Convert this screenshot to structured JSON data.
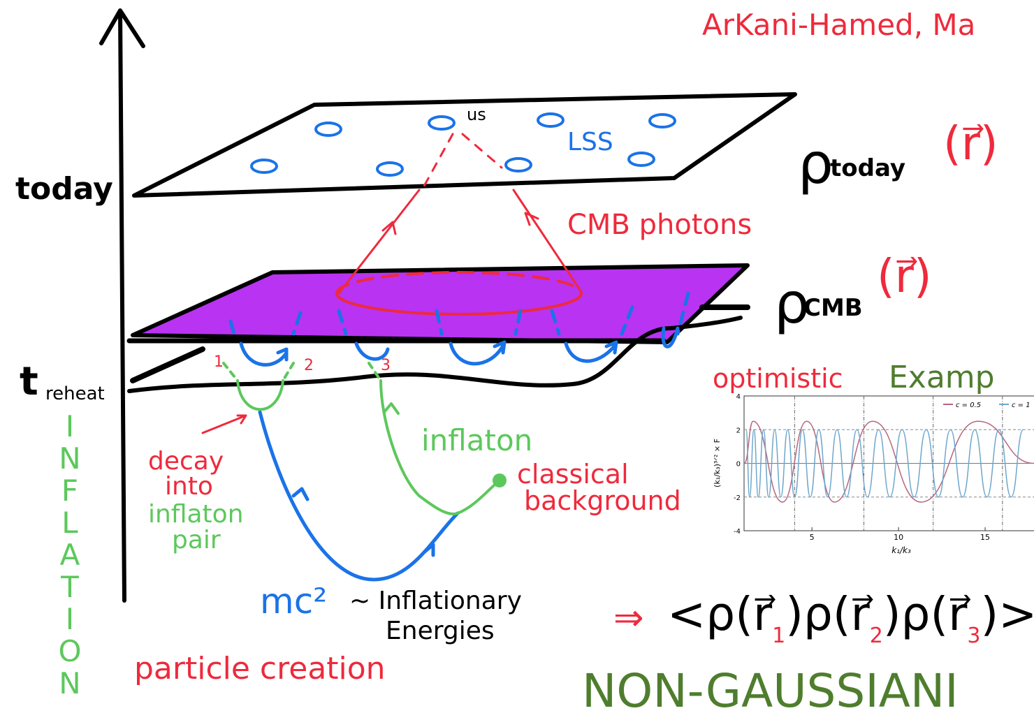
{
  "header": {
    "authors": "ArKani-Hamed, Ma"
  },
  "axis_labels": {
    "today": "today",
    "t": "t",
    "reheat": "reheat",
    "inflation": [
      "I",
      "N",
      "F",
      "L",
      "A",
      "T",
      "I",
      "O",
      "N"
    ]
  },
  "planes": {
    "rho": "ρ",
    "today_sub": "today",
    "today_arg": "(r⃗)",
    "cmb_sub": "CMB",
    "cmb_arg": "(r⃗)",
    "us": "us",
    "lss": "LSS",
    "photons": "CMB photons"
  },
  "particles": {
    "n1": "1",
    "n2": "2",
    "n3": "3",
    "decay": [
      "decay",
      "into"
    ],
    "inflaton_pair": [
      "inflaton",
      "pair"
    ],
    "inflaton": "inflaton",
    "classical": [
      "classical",
      "background"
    ],
    "mc2": "mc²",
    "energies": [
      "~ Inflationary",
      "Energies"
    ],
    "creation": "particle creation"
  },
  "example": {
    "optimistic": "optimistic",
    "examp": "Examp"
  },
  "chart_data": {
    "type": "line",
    "ylabel": "(k₁/k₃)³ᐟ² × F",
    "xlabel": "k₁/k₃",
    "xlim": [
      1,
      20
    ],
    "ylim": [
      -4,
      4
    ],
    "xticks": [
      5,
      10,
      15
    ],
    "yticks": [
      -4,
      -2,
      0,
      2,
      4
    ],
    "xgrid": [
      4,
      8,
      12,
      16
    ],
    "series": [
      {
        "name": "c = 0.5",
        "color": "#b5677f",
        "x": [
          1.1,
          1.6,
          3.3,
          4.7,
          6.3,
          8.5,
          11.3,
          14.6,
          17.8
        ],
        "values": [
          0,
          2.5,
          -2.3,
          2.5,
          -2.3,
          2.5,
          -2.3,
          2.5,
          0
        ]
      },
      {
        "name": "c = 1",
        "color": "#6fa7cc",
        "x": [
          1.2,
          1.4,
          1.65,
          1.9,
          2.2,
          2.5,
          2.85,
          3.2,
          3.6,
          4.0,
          4.45,
          4.9,
          5.4,
          5.9,
          6.45,
          7.0,
          7.6,
          8.2,
          8.85,
          9.5,
          10.2,
          10.9,
          11.6,
          12.3,
          13.0,
          13.7,
          14.4,
          15.1,
          15.8,
          16.5,
          17.2
        ],
        "values": [
          2,
          -2,
          2,
          -2,
          2,
          -2,
          2,
          -2,
          2,
          -2,
          2,
          -2,
          2,
          -2,
          2,
          -2,
          2,
          -2,
          2,
          -2,
          2,
          -2,
          2,
          -2,
          2,
          -2,
          2,
          -2,
          2,
          -2,
          2
        ]
      }
    ]
  },
  "conclusion": {
    "implies": "⇒",
    "correlator": [
      "<ρ(r⃗",
      "1",
      ")ρ(r⃗",
      "2",
      ")ρ(r⃗",
      "3",
      ")>"
    ],
    "non_gaussian": "NON-GAUSSIANI"
  }
}
